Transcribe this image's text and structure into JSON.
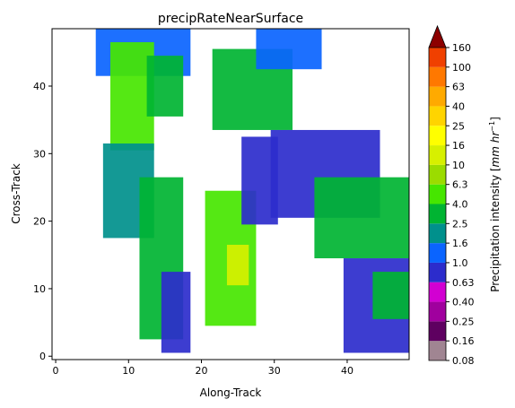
{
  "chart_data": {
    "type": "heatmap",
    "title": "precipRateNearSurface",
    "xlabel": "Along-Track",
    "ylabel": "Cross-Track",
    "xlim": [
      -0.5,
      48.5
    ],
    "ylim": [
      -0.5,
      48.5
    ],
    "x_ticks": [
      0,
      10,
      20,
      30,
      40
    ],
    "y_ticks": [
      0,
      10,
      20,
      30,
      40
    ],
    "colorbar": {
      "label": "Precipitation intensity [mm hr⁻¹]",
      "label_main": "Precipitation intensity [",
      "label_unit": "mm hr",
      "label_exp": "−1",
      "label_close": "]",
      "extend": "max",
      "tick_labels": [
        "0.08",
        "0.16",
        "0.25",
        "0.40",
        "0.63",
        "1.0",
        "1.6",
        "2.5",
        "4.0",
        "6.3",
        "10",
        "16",
        "25",
        "40",
        "63",
        "100",
        "160"
      ],
      "colors": [
        "#a08592",
        "#5e0060",
        "#a0009e",
        "#d200d2",
        "#2c2ccc",
        "#0a64ff",
        "#00908c",
        "#00b432",
        "#46e600",
        "#9bdc00",
        "#d7f000",
        "#ffff00",
        "#ffd400",
        "#ffaa00",
        "#ff7800",
        "#f04000",
        "#c81400",
        "#8c0000"
      ]
    },
    "regions": [
      {
        "x": [
          6,
          18
        ],
        "y": [
          42,
          48
        ],
        "value": 1.0
      },
      {
        "x": [
          8,
          13
        ],
        "y": [
          31,
          46
        ],
        "value": 4.0
      },
      {
        "x": [
          13,
          17
        ],
        "y": [
          36,
          44
        ],
        "value": 2.5
      },
      {
        "x": [
          7,
          13
        ],
        "y": [
          18,
          31
        ],
        "value": 1.6
      },
      {
        "x": [
          12,
          17
        ],
        "y": [
          3,
          26
        ],
        "value": 2.5
      },
      {
        "x": [
          15,
          18
        ],
        "y": [
          1,
          12
        ],
        "value": 0.63
      },
      {
        "x": [
          21,
          27
        ],
        "y": [
          5,
          24
        ],
        "value": 4.0
      },
      {
        "x": [
          24,
          26
        ],
        "y": [
          11,
          16
        ],
        "value": 10
      },
      {
        "x": [
          26,
          30
        ],
        "y": [
          20,
          32
        ],
        "value": 0.63
      },
      {
        "x": [
          22,
          32
        ],
        "y": [
          34,
          45
        ],
        "value": 2.5
      },
      {
        "x": [
          28,
          36
        ],
        "y": [
          43,
          48
        ],
        "value": 1.0
      },
      {
        "x": [
          30,
          44
        ],
        "y": [
          21,
          33
        ],
        "value": 0.63
      },
      {
        "x": [
          36,
          48
        ],
        "y": [
          15,
          26
        ],
        "value": 2.5
      },
      {
        "x": [
          40,
          48
        ],
        "y": [
          1,
          14
        ],
        "value": 0.63
      },
      {
        "x": [
          44,
          48
        ],
        "y": [
          6,
          12
        ],
        "value": 2.5
      }
    ]
  }
}
